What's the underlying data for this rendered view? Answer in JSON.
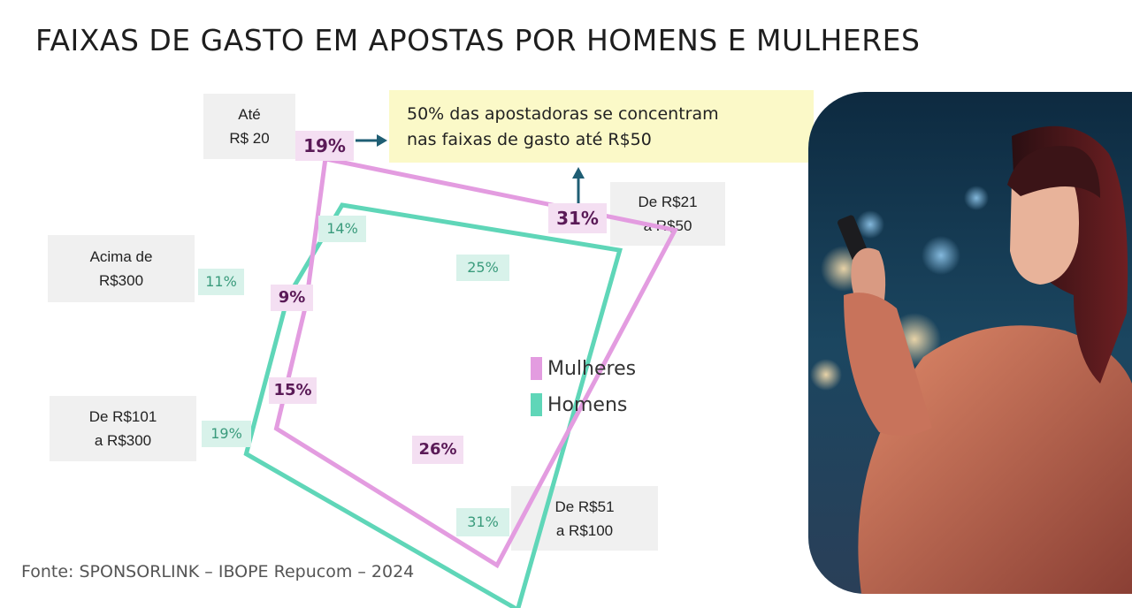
{
  "title": "FAIXAS DE GASTO EM APOSTAS POR HOMENS E MULHERES",
  "callout": {
    "line1": "50% das apostadoras se concentram",
    "line2": "nas faixas de gasto até R$50"
  },
  "source": "Fonte: SPONSORLINK – IBOPE Repucom – 2024",
  "colors": {
    "mulheres": "#e39ce0",
    "homens": "#5fd6b8",
    "callout_bg": "#fbf9c8",
    "arrow": "#1f5e74"
  },
  "chart_data": {
    "type": "radar",
    "categories": [
      {
        "line1": "Até",
        "line2": "R$ 20"
      },
      {
        "line1": "De R$21",
        "line2": "a R$50"
      },
      {
        "line1": "De R$51",
        "line2": "a R$100"
      },
      {
        "line1": "De R$101",
        "line2": "a R$300"
      },
      {
        "line1": "Acima de",
        "line2": "R$300"
      }
    ],
    "series": [
      {
        "name": "Mulheres",
        "values": [
          19,
          31,
          26,
          15,
          9
        ],
        "labels": [
          "19%",
          "31%",
          "26%",
          "15%",
          "9%"
        ]
      },
      {
        "name": "Homens",
        "values": [
          14,
          25,
          31,
          19,
          11
        ],
        "labels": [
          "14%",
          "25%",
          "31%",
          "19%",
          "11%"
        ]
      }
    ],
    "legend_position": "right"
  },
  "photo": {
    "icon": "woman-with-phone-photo"
  }
}
